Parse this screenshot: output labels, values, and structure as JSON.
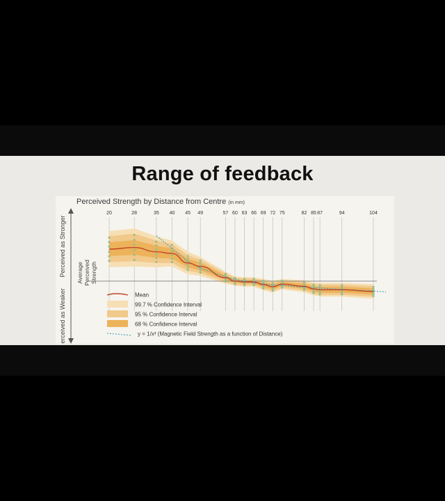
{
  "slide": {
    "title": "Range of feedback"
  },
  "chart_data": {
    "type": "line",
    "title": "Perceived Strength by Distance from Centre",
    "title_unit": "(in mm)",
    "x_ticks": [
      20,
      28,
      35,
      40,
      45,
      49,
      57,
      60,
      63,
      66,
      69,
      72,
      75,
      82,
      85,
      87,
      94,
      104
    ],
    "x_range": [
      20,
      104
    ],
    "y_range": [
      -1,
      1
    ],
    "y_axis": {
      "top_label": "Perceived as Stronger",
      "bottom_label": "Perceived as Weaker",
      "middle_label": [
        "Average",
        "Perceived",
        "Strength"
      ]
    },
    "mean_series": {
      "name": "Mean",
      "x": [
        20,
        28,
        35,
        40,
        45,
        49,
        57,
        60,
        63,
        66,
        69,
        72,
        75,
        82,
        85,
        87,
        94,
        104
      ],
      "y": [
        0.74,
        0.78,
        0.68,
        0.64,
        0.42,
        0.34,
        0.08,
        0.0,
        -0.02,
        -0.02,
        -0.08,
        -0.13,
        -0.07,
        -0.12,
        -0.18,
        -0.2,
        -0.2,
        -0.24
      ]
    },
    "ci_68_halfwidth": [
      0.16,
      0.17,
      0.14,
      0.12,
      0.1,
      0.09,
      0.05,
      0.04,
      0.04,
      0.04,
      0.05,
      0.06,
      0.05,
      0.06,
      0.06,
      0.07,
      0.07,
      0.07
    ],
    "ci_95_halfwidth": [
      0.3,
      0.32,
      0.26,
      0.22,
      0.18,
      0.16,
      0.1,
      0.08,
      0.08,
      0.08,
      0.1,
      0.1,
      0.09,
      0.1,
      0.11,
      0.12,
      0.12,
      0.12
    ],
    "ci_99_halfwidth": [
      0.42,
      0.44,
      0.36,
      0.3,
      0.26,
      0.22,
      0.14,
      0.11,
      0.11,
      0.11,
      0.13,
      0.14,
      0.12,
      0.14,
      0.15,
      0.16,
      0.16,
      0.17
    ],
    "reference_series": {
      "label": "y = 1/x³",
      "description": "(Magnetic Field Strength as a function of Distance)",
      "x": [
        35,
        40,
        45,
        49,
        57,
        60,
        63,
        66,
        69,
        72,
        75,
        82,
        85,
        87,
        94,
        104,
        108
      ],
      "y": [
        1.05,
        0.76,
        0.45,
        0.3,
        0.1,
        0.04,
        0.0,
        -0.04,
        -0.06,
        -0.09,
        -0.1,
        -0.14,
        -0.15,
        -0.16,
        -0.19,
        -0.23,
        -0.25
      ]
    },
    "legend": [
      {
        "label": "Mean",
        "color": "#c0452a",
        "kind": "line"
      },
      {
        "label": "99.7 % Confidence Interval",
        "color": "#f6dfb4",
        "kind": "swatch"
      },
      {
        "label": "95    % Confidence Interval",
        "color": "#f1c98a",
        "kind": "swatch"
      },
      {
        "label": "68    % Confidence Interval",
        "color": "#ecb35a",
        "kind": "swatch"
      },
      {
        "label": "",
        "color": "#4aa2b8",
        "kind": "dotted"
      }
    ],
    "colors": {
      "mean": "#c0452a",
      "ci99": "#f6dfb4",
      "ci95": "#f1c98a",
      "ci68": "#ecb35a",
      "reference": "#4aa2b8",
      "points": "#9bbd8e",
      "gridline": "#b8b6b0",
      "zero_line": "#6a6a6a"
    }
  }
}
